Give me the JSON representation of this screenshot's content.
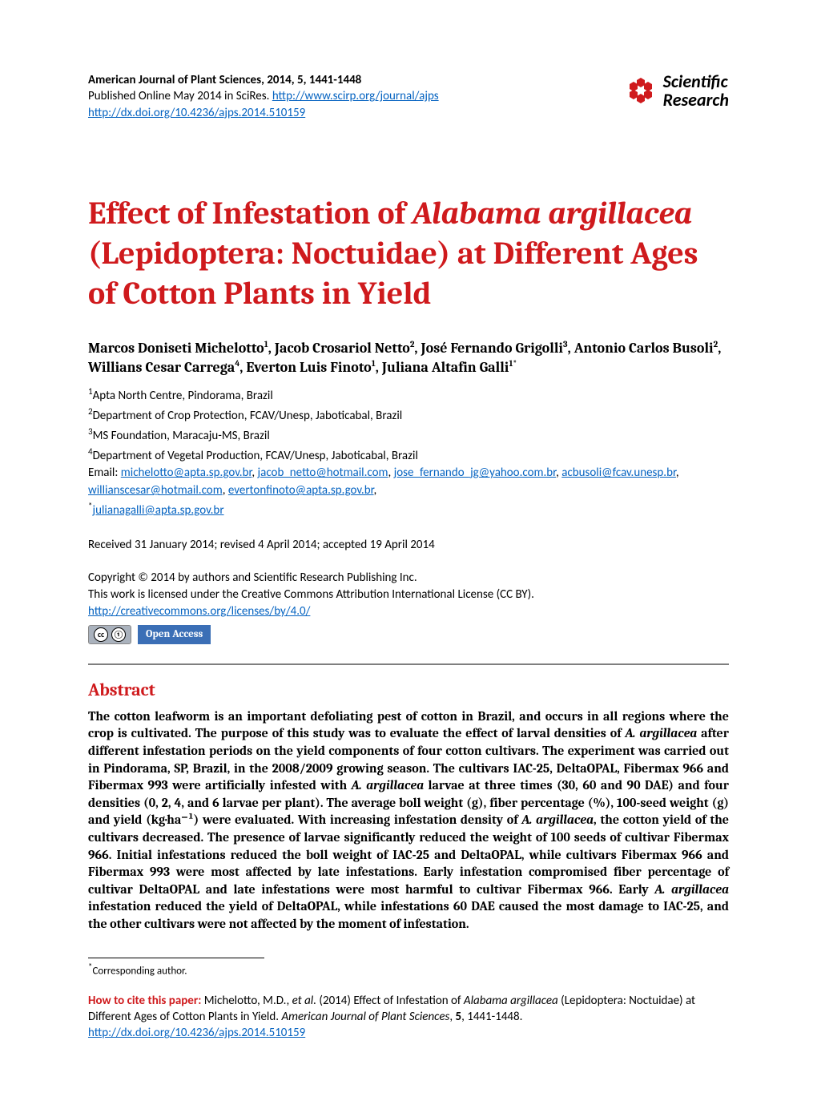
{
  "colors": {
    "accent_red": "#cf1a1d",
    "link_blue": "#0563c1",
    "oa_blue": "#3b6fb6",
    "rule_gray": "#7f7f7f",
    "text": "#000000",
    "background": "#ffffff"
  },
  "header": {
    "journal_line": "American Journal of Plant Sciences, 2014, 5, 1441-1448",
    "published_prefix": "Published Online May 2014 in SciRes. ",
    "journal_url": "http://www.scirp.org/journal/ajps",
    "doi_url": "http://dx.doi.org/10.4236/ajps.2014.510159",
    "logo_top": "Scientific",
    "logo_bottom": "Research"
  },
  "title": {
    "pre_italic": "Effect of Infestation of ",
    "italic": "Alabama argillacea",
    "post_italic": " (Lepidoptera: Noctuidae) at Different Ages of Cotton Plants in Yield"
  },
  "authors_html": "Marcos Doniseti Michelotto<sup>1</sup>, Jacob Crosariol Netto<sup>2</sup>, José Fernando Grigolli<sup>3</sup>, Antonio Carlos Busoli<sup>2</sup>, Willians Cesar Carrega<sup>4</sup>, Everton Luis Finoto<sup>1</sup>, Juliana Altafin Galli<sup>1*</sup>",
  "affiliations": {
    "a1": "Apta North Centre, Pindorama, Brazil",
    "a2": "Department of Crop Protection, FCAV/Unesp, Jaboticabal, Brazil",
    "a3": "MS Foundation, Maracaju-MS, Brazil",
    "a4": "Department of Vegetal Production, FCAV/Unesp, Jaboticabal, Brazil",
    "email_label": "Email: ",
    "emails": [
      "michelotto@apta.sp.gov.br",
      "jacob_netto@hotmail.com",
      "jose_fernando_jg@yahoo.com.br",
      "acbusoli@fcav.unesp.br",
      "willianscesar@hotmail.com",
      "evertonfinoto@apta.sp.gov.br"
    ],
    "corr_email": "julianagalli@apta.sp.gov.br"
  },
  "dates": "Received 31 January 2014; revised 4 April 2014; accepted 19 April 2014",
  "copyright": {
    "line1": "Copyright © 2014 by authors and Scientific Research Publishing Inc.",
    "line2": "This work is licensed under the Creative Commons Attribution International License (CC BY).",
    "license_url": "http://creativecommons.org/licenses/by/4.0/",
    "oa_label": "Open Access"
  },
  "abstract": {
    "heading": "Abstract",
    "pre": "The cotton leafworm is an important defoliating pest of cotton in Brazil, and occurs in all regions where the crop is cultivated. The purpose of this study was to evaluate the effect of larval densities of ",
    "i1": "A. argillacea",
    "t2": " after different infestation periods on the yield components of four cotton cultivars. The experiment was carried out in Pindorama, SP, Brazil, in the 2008/2009 growing season. The cultivars IAC-25, DeltaOPAL, Fibermax 966 and Fibermax 993 were artificially infested with ",
    "i2": "A. argillacea",
    "t3": " larvae at three times (30, 60 and 90 DAE) and four densities (0, 2, 4, and 6 larvae per plant). The average boll weight (g), fiber percentage (%), 100-seed weight (g) and yield (kg·ha⁻¹) were evaluated. With increasing infestation density of ",
    "i3": "A. argillacea",
    "t4": ", the cotton yield of the cultivars decreased. The presence of larvae significantly reduced the weight of 100 seeds of cultivar Fibermax 966. Initial infestations reduced the boll weight of IAC-25 and DeltaOPAL, while cultivars Fibermax 966 and Fibermax 993 were most affected by late infestations. Early infestation compromised fiber percentage of cultivar DeltaOPAL and late infestations were most harmful to cultivar Fibermax 966. Early ",
    "i4": "A. argillacea",
    "t5": " infestation reduced the yield of DeltaOPAL, while infestations 60 DAE caused the most damage to IAC-25, and the other cultivars were not affected by the moment of infestation."
  },
  "footnote": "Corresponding author.",
  "citation": {
    "lead": "How to cite this paper:",
    "text_pre": " Michelotto, M.D., ",
    "etal": "et al.",
    "text_mid": " (2014) Effect of Infestation of ",
    "species": "Alabama argillacea",
    "text_post_species": " (Lepidoptera: Noctuidae) at Different Ages of Cotton Plants in Yield. ",
    "journal": "American Journal of Plant Sciences",
    "vol_pages": ", 5, 1441-1448.",
    "vol_bold": "5",
    "doi": "http://dx.doi.org/10.4236/ajps.2014.510159"
  }
}
